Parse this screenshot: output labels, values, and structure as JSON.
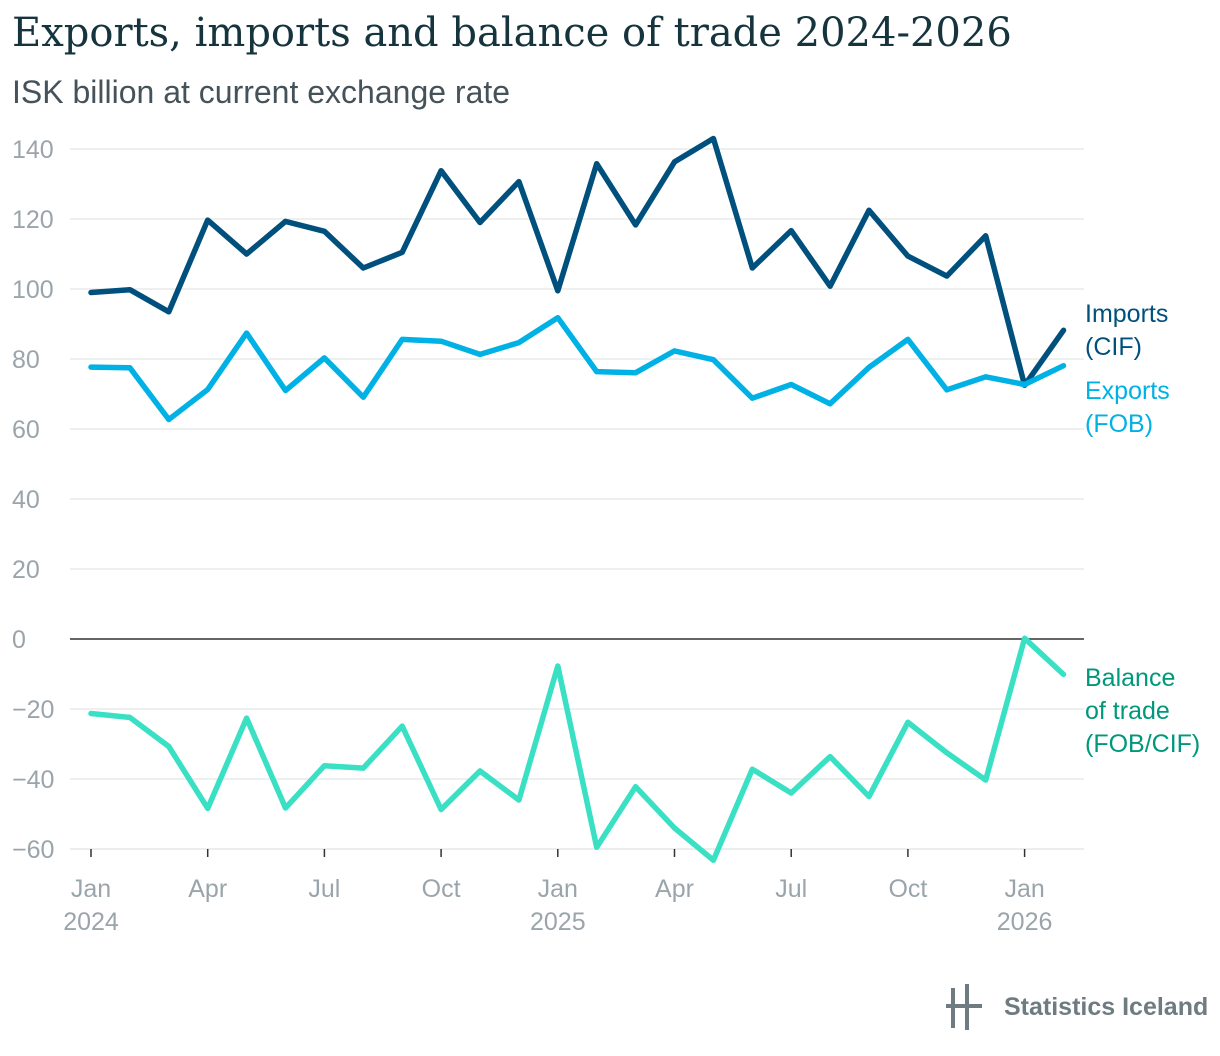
{
  "chart_data": {
    "type": "line",
    "title": "Exports, imports and balance of trade 2024-2026",
    "subtitle": "ISK billion at current exchange rate",
    "ylim": [
      -60,
      145
    ],
    "yticks": [
      140,
      120,
      100,
      80,
      60,
      40,
      20,
      0,
      -20,
      -40,
      -60
    ],
    "ytick_labels": [
      "140",
      "120",
      "100",
      "80",
      "60",
      "40",
      "20",
      "0",
      "−20",
      "−40",
      "−60"
    ],
    "x_months": [
      "2024-01",
      "2024-02",
      "2024-03",
      "2024-04",
      "2024-05",
      "2024-06",
      "2024-07",
      "2024-08",
      "2024-09",
      "2024-10",
      "2024-11",
      "2024-12",
      "2025-01",
      "2025-02",
      "2025-03",
      "2025-04",
      "2025-05",
      "2025-06",
      "2025-07",
      "2025-08",
      "2025-09",
      "2025-10",
      "2025-11",
      "2025-12",
      "2026-01",
      "2026-02"
    ],
    "xticks": [
      {
        "index": 0,
        "label": "Jan",
        "year": "2024"
      },
      {
        "index": 3,
        "label": "Apr",
        "year": ""
      },
      {
        "index": 6,
        "label": "Jul",
        "year": ""
      },
      {
        "index": 9,
        "label": "Oct",
        "year": ""
      },
      {
        "index": 12,
        "label": "Jan",
        "year": "2025"
      },
      {
        "index": 15,
        "label": "Apr",
        "year": ""
      },
      {
        "index": 18,
        "label": "Jul",
        "year": ""
      },
      {
        "index": 21,
        "label": "Oct",
        "year": ""
      },
      {
        "index": 24,
        "label": "Jan",
        "year": "2026"
      }
    ],
    "series": [
      {
        "name": "Imports (CIF)",
        "label_lines": [
          "Imports",
          "(CIF)"
        ],
        "color": "#00507e",
        "values": [
          99.0,
          99.8,
          93.5,
          119.7,
          110.0,
          119.3,
          116.5,
          106.0,
          110.5,
          133.8,
          119.0,
          130.7,
          99.5,
          135.8,
          118.3,
          136.3,
          143.0,
          106.0,
          116.7,
          100.8,
          122.5,
          109.4,
          103.7,
          115.2,
          72.5,
          88.2
        ]
      },
      {
        "name": "Exports (FOB)",
        "label_lines": [
          "Exports",
          "(FOB)"
        ],
        "color": "#00b1e5",
        "values": [
          77.7,
          77.5,
          62.7,
          71.3,
          87.4,
          71.0,
          80.3,
          69.1,
          85.6,
          85.1,
          81.3,
          84.7,
          91.8,
          76.4,
          76.1,
          82.3,
          79.8,
          68.8,
          72.7,
          67.2,
          77.6,
          85.6,
          71.2,
          74.9,
          72.7,
          78.1
        ]
      },
      {
        "name": "Balance of trade (FOB/CIF)",
        "label_lines": [
          "Balance",
          "of trade",
          "(FOB/CIF)"
        ],
        "color": "#3ae0c3",
        "label_color": "#00987c",
        "values": [
          -21.3,
          -22.4,
          -30.7,
          -48.4,
          -22.6,
          -48.3,
          -36.2,
          -36.9,
          -24.9,
          -48.7,
          -37.7,
          -46.0,
          -7.7,
          -59.5,
          -42.2,
          -54.0,
          -63.2,
          -37.2,
          -44.0,
          -33.6,
          -45.0,
          -23.8,
          -32.5,
          -40.3,
          0.2,
          -10.1
        ]
      }
    ]
  },
  "brand": {
    "name": "Statistics Iceland",
    "color": "#6e7c82"
  }
}
